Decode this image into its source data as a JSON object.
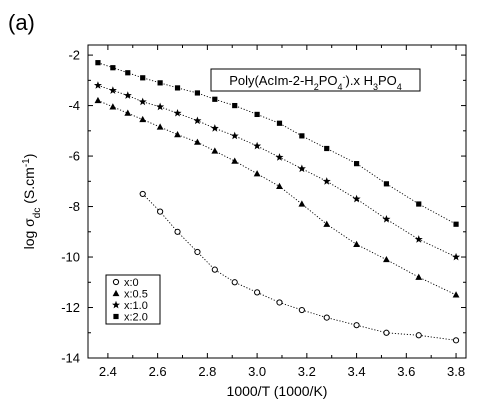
{
  "panel_label": "(a)",
  "chart_data": {
    "type": "scatter",
    "xlabel": "1000/T (1000/K)",
    "ylabel": "log σdc (S.cm-1)",
    "xlim": [
      2.32,
      3.84
    ],
    "ylim": [
      -14,
      -1.6
    ],
    "xticks": [
      2.4,
      2.6,
      2.8,
      3.0,
      3.2,
      3.4,
      3.6,
      3.8
    ],
    "yticks": [
      -14,
      -12,
      -10,
      -8,
      -6,
      -4,
      -2
    ],
    "xtick_labels": [
      "2.4",
      "2.6",
      "2.8",
      "3.0",
      "3.2",
      "3.4",
      "3.6",
      "3.8"
    ],
    "ytick_labels": [
      "-14",
      "-12",
      "-10",
      "-8",
      "-6",
      "-4",
      "-2"
    ],
    "annotation": "Poly(AcIm-2-H2PO4-).x H3PO4",
    "legend_position": "bottom-left",
    "series": [
      {
        "name": "x:0",
        "marker": "open-circle",
        "fit": "x0",
        "x": [
          2.54,
          2.61,
          2.68,
          2.76,
          2.83,
          2.91,
          3.0,
          3.09,
          3.18,
          3.28,
          3.4,
          3.52,
          3.65,
          3.8
        ],
        "y": [
          -7.5,
          -8.2,
          -9.0,
          -9.8,
          -10.5,
          -11.0,
          -11.4,
          -11.8,
          -12.1,
          -12.4,
          -12.7,
          -13.0,
          -13.1,
          -13.3
        ]
      },
      {
        "name": "x:0.5",
        "marker": "triangle",
        "fit": "yes",
        "x": [
          2.36,
          2.42,
          2.48,
          2.54,
          2.61,
          2.68,
          2.76,
          2.83,
          2.91,
          3.0,
          3.09,
          3.18,
          3.28,
          3.4,
          3.52,
          3.65,
          3.8
        ],
        "y": [
          -3.8,
          -4.05,
          -4.3,
          -4.55,
          -4.85,
          -5.15,
          -5.45,
          -5.8,
          -6.2,
          -6.7,
          -7.2,
          -7.9,
          -8.7,
          -9.5,
          -10.1,
          -10.8,
          -11.5
        ]
      },
      {
        "name": "x:1.0",
        "marker": "star",
        "fit": "yes",
        "x": [
          2.36,
          2.42,
          2.48,
          2.54,
          2.61,
          2.68,
          2.76,
          2.83,
          2.91,
          3.0,
          3.09,
          3.18,
          3.28,
          3.4,
          3.52,
          3.65,
          3.8
        ],
        "y": [
          -3.2,
          -3.4,
          -3.6,
          -3.85,
          -4.05,
          -4.3,
          -4.6,
          -4.9,
          -5.2,
          -5.6,
          -6.05,
          -6.5,
          -7.0,
          -7.7,
          -8.5,
          -9.3,
          -10.0
        ]
      },
      {
        "name": "x:2.0",
        "marker": "square",
        "fit": "yes",
        "x": [
          2.36,
          2.42,
          2.48,
          2.54,
          2.61,
          2.68,
          2.76,
          2.83,
          2.91,
          3.0,
          3.09,
          3.18,
          3.28,
          3.4,
          3.52,
          3.65,
          3.8
        ],
        "y": [
          -2.3,
          -2.5,
          -2.7,
          -2.9,
          -3.1,
          -3.3,
          -3.5,
          -3.75,
          -4.0,
          -4.35,
          -4.7,
          -5.2,
          -5.7,
          -6.3,
          -7.1,
          -7.9,
          -8.7
        ]
      }
    ]
  }
}
